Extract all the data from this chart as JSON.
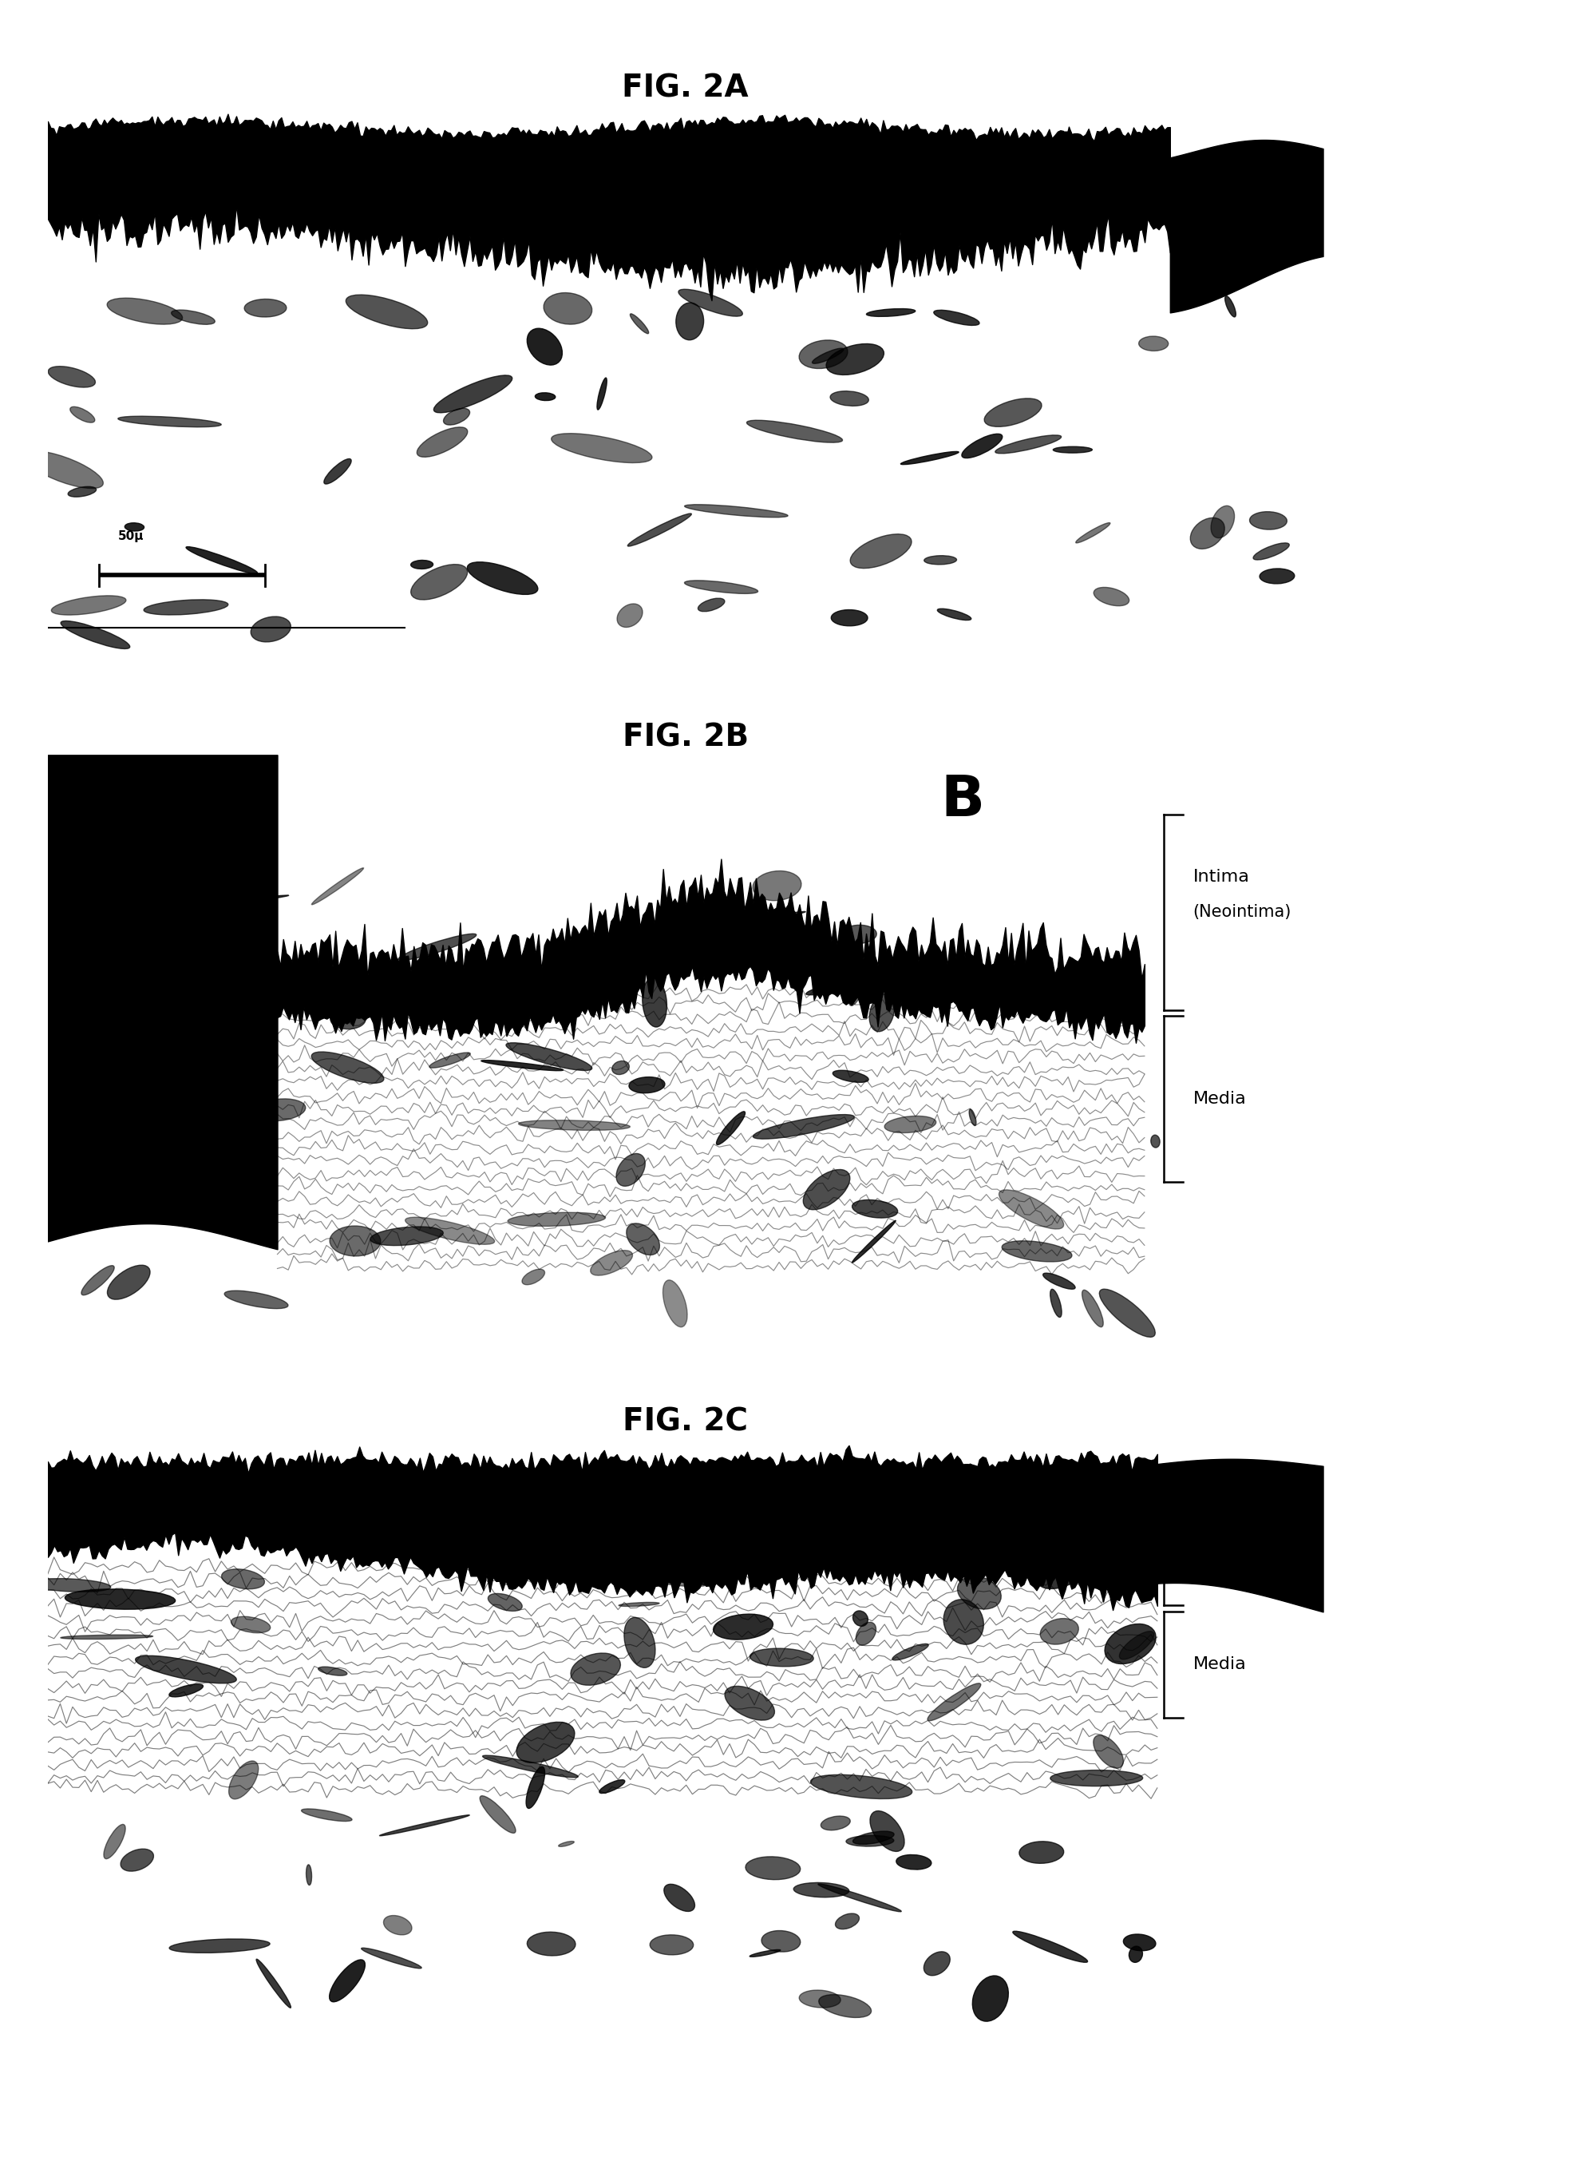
{
  "fig_width": 19.97,
  "fig_height": 27.01,
  "bg_color": "#ffffff",
  "title_A": "FIG. 2A",
  "title_B": "FIG. 2B",
  "title_C": "FIG. 2C",
  "title_fontsize": 28,
  "label_fontsize": 52,
  "annotation_fontsize": 16,
  "scale_text": "50μ"
}
